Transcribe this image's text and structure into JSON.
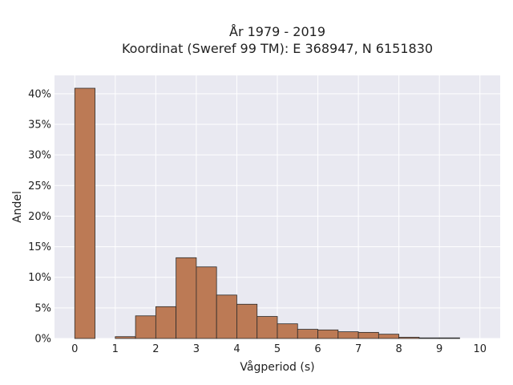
{
  "chart_data": {
    "type": "bar",
    "title_lines": [
      "År 1979 - 2019",
      "Koordinat (Sweref 99 TM): E 368947, N 6151830"
    ],
    "xlabel": "Vågperiod (s)",
    "ylabel": "Andel",
    "bin_width": 0.5,
    "bins": [
      {
        "start": 0.0,
        "value": 0.409
      },
      {
        "start": 0.5,
        "value": 0.0
      },
      {
        "start": 1.0,
        "value": 0.003
      },
      {
        "start": 1.5,
        "value": 0.037
      },
      {
        "start": 2.0,
        "value": 0.052
      },
      {
        "start": 2.5,
        "value": 0.132
      },
      {
        "start": 3.0,
        "value": 0.117
      },
      {
        "start": 3.5,
        "value": 0.071
      },
      {
        "start": 4.0,
        "value": 0.056
      },
      {
        "start": 4.5,
        "value": 0.036
      },
      {
        "start": 5.0,
        "value": 0.024
      },
      {
        "start": 5.5,
        "value": 0.015
      },
      {
        "start": 6.0,
        "value": 0.014
      },
      {
        "start": 6.5,
        "value": 0.011
      },
      {
        "start": 7.0,
        "value": 0.01
      },
      {
        "start": 7.5,
        "value": 0.007
      },
      {
        "start": 8.0,
        "value": 0.002
      },
      {
        "start": 8.5,
        "value": 0.001
      },
      {
        "start": 9.0,
        "value": 0.001
      },
      {
        "start": 9.5,
        "value": 0.0
      }
    ],
    "x_ticks": [
      "0",
      "1",
      "2",
      "3",
      "4",
      "5",
      "6",
      "7",
      "8",
      "9",
      "10"
    ],
    "y_ticks": [
      {
        "value": 0.0,
        "label": "0%"
      },
      {
        "value": 0.05,
        "label": "5%"
      },
      {
        "value": 0.1,
        "label": "10%"
      },
      {
        "value": 0.15,
        "label": "15%"
      },
      {
        "value": 0.2,
        "label": "20%"
      },
      {
        "value": 0.25,
        "label": "25%"
      },
      {
        "value": 0.3,
        "label": "30%"
      },
      {
        "value": 0.35,
        "label": "35%"
      },
      {
        "value": 0.4,
        "label": "40%"
      }
    ],
    "xlim": [
      -0.5,
      10.5
    ],
    "ylim": [
      0,
      0.43
    ],
    "grid": true,
    "colors": {
      "bar": "#bc7a55",
      "bar_edge": "#2b2b2b",
      "plot_background": "#e9e9f1",
      "grid": "#ffffff"
    }
  }
}
